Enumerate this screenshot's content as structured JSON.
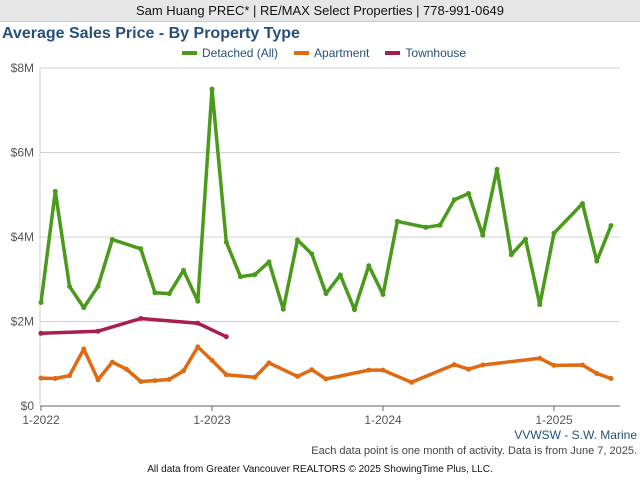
{
  "header": {
    "text": "Sam Huang PREC* | RE/MAX Select Properties | 778-991-0649"
  },
  "footer": {
    "region": "VVWSW - S.W. Marine",
    "note": "Each data point is one month of activity. Data is from June 7, 2025.",
    "credit": "All data from Greater Vancouver REALTORS © 2025 ShowingTime Plus, LLC."
  },
  "chart_data": {
    "type": "line",
    "title": "Average Sales Price - By Property Type",
    "xlabel": "",
    "ylabel": "",
    "x_tick_labels": [
      "1-2022",
      "1-2023",
      "1-2024",
      "1-2025"
    ],
    "y_tick_labels": [
      "$0",
      "$2M",
      "$4M",
      "$6M",
      "$8M"
    ],
    "ylim": [
      0,
      8000000
    ],
    "y_unit": "USD",
    "grid": true,
    "legend_position": "top",
    "series": [
      {
        "name": "Detached (All)",
        "color": "#4a9a1c",
        "points": [
          {
            "date": "2022-01",
            "value": 2450000
          },
          {
            "date": "2022-02",
            "value": 5080000
          },
          {
            "date": "2022-03",
            "value": 2830000
          },
          {
            "date": "2022-04",
            "value": 2330000
          },
          {
            "date": "2022-05",
            "value": 2830000
          },
          {
            "date": "2022-06",
            "value": 3940000
          },
          {
            "date": "2022-08",
            "value": 3720000
          },
          {
            "date": "2022-09",
            "value": 2680000
          },
          {
            "date": "2022-10",
            "value": 2660000
          },
          {
            "date": "2022-11",
            "value": 3210000
          },
          {
            "date": "2022-12",
            "value": 2480000
          },
          {
            "date": "2023-01",
            "value": 7500000
          },
          {
            "date": "2023-02",
            "value": 3880000
          },
          {
            "date": "2023-03",
            "value": 3060000
          },
          {
            "date": "2023-04",
            "value": 3110000
          },
          {
            "date": "2023-05",
            "value": 3410000
          },
          {
            "date": "2023-06",
            "value": 2290000
          },
          {
            "date": "2023-07",
            "value": 3930000
          },
          {
            "date": "2023-08",
            "value": 3600000
          },
          {
            "date": "2023-09",
            "value": 2660000
          },
          {
            "date": "2023-10",
            "value": 3100000
          },
          {
            "date": "2023-11",
            "value": 2280000
          },
          {
            "date": "2023-12",
            "value": 3320000
          },
          {
            "date": "2024-01",
            "value": 2640000
          },
          {
            "date": "2024-02",
            "value": 4370000
          },
          {
            "date": "2024-04",
            "value": 4230000
          },
          {
            "date": "2024-05",
            "value": 4280000
          },
          {
            "date": "2024-06",
            "value": 4880000
          },
          {
            "date": "2024-07",
            "value": 5030000
          },
          {
            "date": "2024-08",
            "value": 4040000
          },
          {
            "date": "2024-09",
            "value": 5600000
          },
          {
            "date": "2024-10",
            "value": 3580000
          },
          {
            "date": "2024-11",
            "value": 3950000
          },
          {
            "date": "2024-12",
            "value": 2400000
          },
          {
            "date": "2025-01",
            "value": 4090000
          },
          {
            "date": "2025-03",
            "value": 4790000
          },
          {
            "date": "2025-04",
            "value": 3430000
          },
          {
            "date": "2025-05",
            "value": 4270000
          }
        ]
      },
      {
        "name": "Apartment",
        "color": "#e06a12",
        "points": [
          {
            "date": "2022-01",
            "value": 660000
          },
          {
            "date": "2022-02",
            "value": 650000
          },
          {
            "date": "2022-03",
            "value": 720000
          },
          {
            "date": "2022-04",
            "value": 1350000
          },
          {
            "date": "2022-05",
            "value": 620000
          },
          {
            "date": "2022-06",
            "value": 1040000
          },
          {
            "date": "2022-07",
            "value": 870000
          },
          {
            "date": "2022-08",
            "value": 580000
          },
          {
            "date": "2022-09",
            "value": 600000
          },
          {
            "date": "2022-10",
            "value": 630000
          },
          {
            "date": "2022-11",
            "value": 830000
          },
          {
            "date": "2022-12",
            "value": 1400000
          },
          {
            "date": "2023-01",
            "value": 1080000
          },
          {
            "date": "2023-02",
            "value": 740000
          },
          {
            "date": "2023-04",
            "value": 680000
          },
          {
            "date": "2023-05",
            "value": 1020000
          },
          {
            "date": "2023-07",
            "value": 700000
          },
          {
            "date": "2023-08",
            "value": 860000
          },
          {
            "date": "2023-09",
            "value": 640000
          },
          {
            "date": "2023-12",
            "value": 850000
          },
          {
            "date": "2024-01",
            "value": 850000
          },
          {
            "date": "2024-03",
            "value": 560000
          },
          {
            "date": "2024-06",
            "value": 980000
          },
          {
            "date": "2024-07",
            "value": 870000
          },
          {
            "date": "2024-08",
            "value": 970000
          },
          {
            "date": "2024-12",
            "value": 1130000
          },
          {
            "date": "2025-01",
            "value": 960000
          },
          {
            "date": "2025-03",
            "value": 970000
          },
          {
            "date": "2025-04",
            "value": 770000
          },
          {
            "date": "2025-05",
            "value": 650000
          }
        ]
      },
      {
        "name": "Townhouse",
        "color": "#a81e4d",
        "points": [
          {
            "date": "2022-01",
            "value": 1720000
          },
          {
            "date": "2022-05",
            "value": 1770000
          },
          {
            "date": "2022-08",
            "value": 2070000
          },
          {
            "date": "2022-12",
            "value": 1960000
          },
          {
            "date": "2023-02",
            "value": 1640000
          }
        ]
      }
    ]
  }
}
